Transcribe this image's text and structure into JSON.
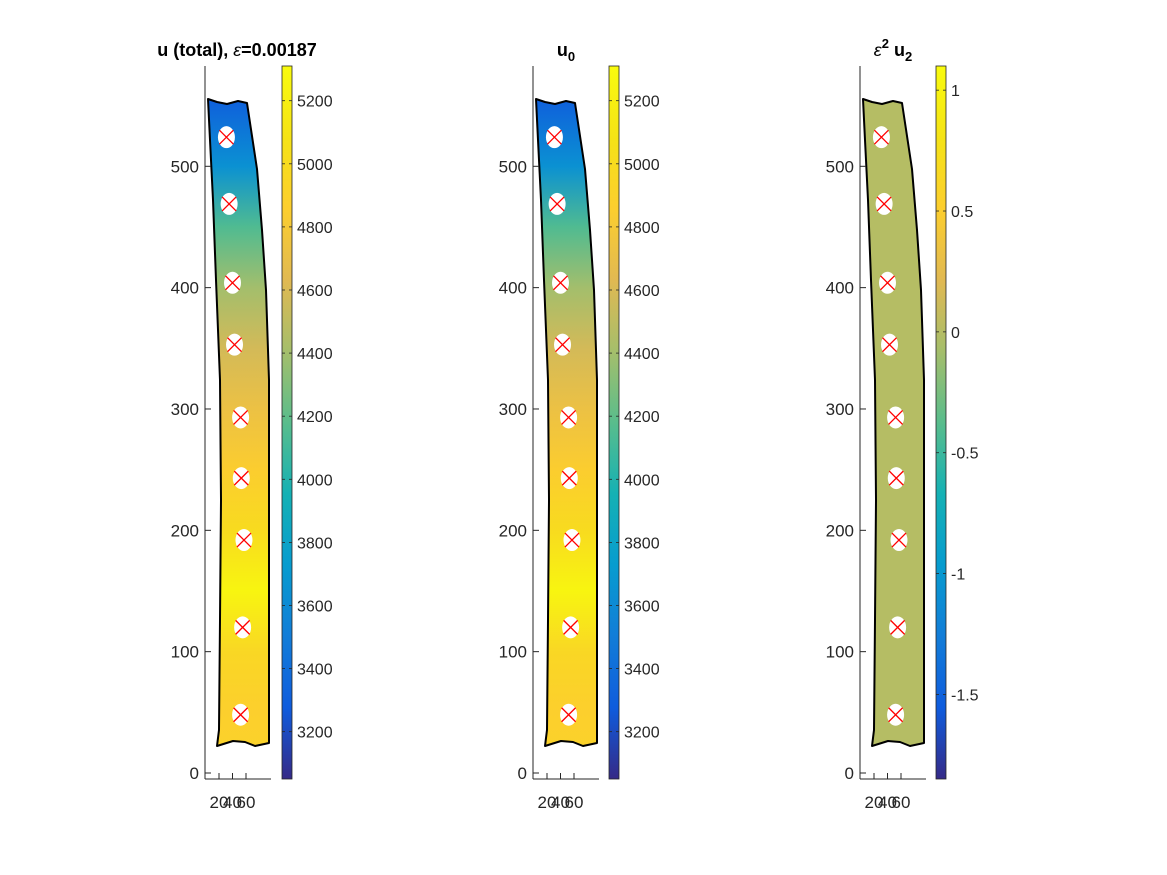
{
  "chart_data": [
    {
      "type": "heatmap",
      "title": "u (total), ε=0.00187",
      "title_parts": {
        "main": "u (total), ",
        "symbol": "ε",
        "rest": "=0.00187"
      },
      "xlabel": "",
      "ylabel": "",
      "xlim": [
        0,
        80
      ],
      "ylim": [
        0,
        580
      ],
      "xticks": [
        20,
        40,
        60
      ],
      "xtick_labels": [
        "20",
        "40",
        "60"
      ],
      "yticks": [
        0,
        100,
        200,
        300,
        400,
        500
      ],
      "ytick_labels": [
        "0",
        "100",
        "200",
        "300",
        "400",
        "500"
      ],
      "colorbar": {
        "range": [
          3050,
          5310
        ],
        "ticks": [
          3200,
          3400,
          3600,
          3800,
          4000,
          4200,
          4400,
          4600,
          4800,
          5000,
          5200
        ],
        "tick_labels": [
          "3200",
          "3400",
          "3600",
          "3800",
          "4000",
          "4200",
          "4400",
          "4600",
          "4800",
          "5000",
          "5200"
        ]
      },
      "field_profile": [
        {
          "y": 22,
          "value": 4900
        },
        {
          "y": 50,
          "value": 4870
        },
        {
          "y": 100,
          "value": 4950
        },
        {
          "y": 150,
          "value": 5250
        },
        {
          "y": 200,
          "value": 5000
        },
        {
          "y": 250,
          "value": 4850
        },
        {
          "y": 300,
          "value": 4720
        },
        {
          "y": 350,
          "value": 4580
        },
        {
          "y": 400,
          "value": 4400
        },
        {
          "y": 450,
          "value": 4150
        },
        {
          "y": 500,
          "value": 3650
        },
        {
          "y": 555,
          "value": 3300
        }
      ],
      "holes": [
        {
          "x": 31,
          "y": 524
        },
        {
          "x": 35,
          "y": 469
        },
        {
          "x": 40,
          "y": 404
        },
        {
          "x": 43,
          "y": 353
        },
        {
          "x": 52,
          "y": 293
        },
        {
          "x": 53,
          "y": 243
        },
        {
          "x": 57,
          "y": 192
        },
        {
          "x": 55,
          "y": 120
        },
        {
          "x": 52,
          "y": 48
        }
      ]
    },
    {
      "type": "heatmap",
      "title": "u0",
      "title_parts": {
        "main": "u",
        "sub": "0"
      },
      "xlabel": "",
      "ylabel": "",
      "xlim": [
        0,
        80
      ],
      "ylim": [
        0,
        580
      ],
      "xticks": [
        20,
        40,
        60
      ],
      "xtick_labels": [
        "20",
        "40",
        "60"
      ],
      "yticks": [
        0,
        100,
        200,
        300,
        400,
        500
      ],
      "ytick_labels": [
        "0",
        "100",
        "200",
        "300",
        "400",
        "500"
      ],
      "colorbar": {
        "range": [
          3050,
          5310
        ],
        "ticks": [
          3200,
          3400,
          3600,
          3800,
          4000,
          4200,
          4400,
          4600,
          4800,
          5000,
          5200
        ],
        "tick_labels": [
          "3200",
          "3400",
          "3600",
          "3800",
          "4000",
          "4200",
          "4400",
          "4600",
          "4800",
          "5000",
          "5200"
        ]
      },
      "field_profile": [
        {
          "y": 22,
          "value": 4900
        },
        {
          "y": 50,
          "value": 4870
        },
        {
          "y": 100,
          "value": 4950
        },
        {
          "y": 150,
          "value": 5250
        },
        {
          "y": 200,
          "value": 5000
        },
        {
          "y": 250,
          "value": 4850
        },
        {
          "y": 300,
          "value": 4720
        },
        {
          "y": 350,
          "value": 4580
        },
        {
          "y": 400,
          "value": 4400
        },
        {
          "y": 450,
          "value": 4150
        },
        {
          "y": 500,
          "value": 3650
        },
        {
          "y": 555,
          "value": 3300
        }
      ],
      "holes": [
        {
          "x": 31,
          "y": 524
        },
        {
          "x": 35,
          "y": 469
        },
        {
          "x": 40,
          "y": 404
        },
        {
          "x": 43,
          "y": 353
        },
        {
          "x": 52,
          "y": 293
        },
        {
          "x": 53,
          "y": 243
        },
        {
          "x": 57,
          "y": 192
        },
        {
          "x": 55,
          "y": 120
        },
        {
          "x": 52,
          "y": 48
        }
      ]
    },
    {
      "type": "heatmap",
      "title": "ε2 u2",
      "title_parts": {
        "symbol": "ε",
        "sup": "2",
        "main": " u",
        "sub": "2"
      },
      "xlabel": "",
      "ylabel": "",
      "xlim": [
        0,
        80
      ],
      "ylim": [
        0,
        580
      ],
      "xticks": [
        20,
        40,
        60
      ],
      "xtick_labels": [
        "20",
        "40",
        "60"
      ],
      "yticks": [
        0,
        100,
        200,
        300,
        400,
        500
      ],
      "ytick_labels": [
        "0",
        "100",
        "200",
        "300",
        "400",
        "500"
      ],
      "colorbar": {
        "range": [
          -1.85,
          1.1
        ],
        "ticks": [
          -1.5,
          -1,
          -0.5,
          0,
          0.5,
          1
        ],
        "tick_labels": [
          "-1.5",
          "-1",
          "-0.5",
          "0",
          "0.5",
          "1"
        ]
      },
      "field_profile": [
        {
          "y": 22,
          "value": 0
        },
        {
          "y": 555,
          "value": 0
        }
      ],
      "holes": [
        {
          "x": 31,
          "y": 524
        },
        {
          "x": 35,
          "y": 469
        },
        {
          "x": 40,
          "y": 404
        },
        {
          "x": 43,
          "y": 353
        },
        {
          "x": 52,
          "y": 293
        },
        {
          "x": 53,
          "y": 243
        },
        {
          "x": 57,
          "y": 192
        },
        {
          "x": 55,
          "y": 120
        },
        {
          "x": 52,
          "y": 48
        }
      ]
    }
  ],
  "colormap": "parula",
  "colors": {
    "outline": "#000000",
    "marker": "#ff0000",
    "hole_fill": "#ffffff",
    "axis": "#262626"
  }
}
